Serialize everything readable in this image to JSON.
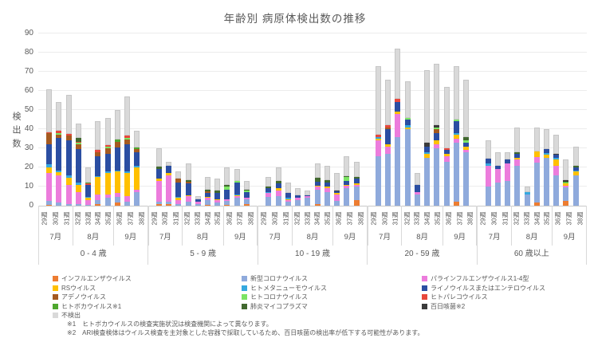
{
  "chart_data": {
    "type": "bar",
    "variant": "stacked",
    "title": "年齢別 病原体検出数の推移",
    "ylabel": "検出数",
    "ylim": [
      0,
      90
    ],
    "ytick_step": 10,
    "grid": true,
    "legend_position": "bottom",
    "weeks": [
      "29週",
      "30週",
      "31週",
      "32週",
      "33週",
      "34週",
      "35週",
      "36週",
      "37週",
      "38週"
    ],
    "months": [
      {
        "label": "7月",
        "weeks": 3
      },
      {
        "label": "8月",
        "weeks": 4
      },
      {
        "label": "9月",
        "weeks": 3
      }
    ],
    "series": [
      {
        "name": "インフルエンザウイルス",
        "color": "#ED7D31"
      },
      {
        "name": "新型コロナウイルス",
        "color": "#8FAADC"
      },
      {
        "name": "パラインフルエンザウイルス1-4型",
        "color": "#EC7CDC"
      },
      {
        "name": "RSウイルス",
        "color": "#FFC000"
      },
      {
        "name": "ヒトメタニューモウイルス",
        "color": "#35A8DF"
      },
      {
        "name": "ライノウイルスまたはエンテロウイルス",
        "color": "#2B4EA2"
      },
      {
        "name": "アデノウイルス",
        "color": "#A55A20"
      },
      {
        "name": "ヒトコロナウイルス",
        "color": "#7CE464"
      },
      {
        "name": "ヒトパレコウイルス",
        "color": "#E8483C"
      },
      {
        "name": "ヒトボカウイルス※1",
        "color": "#4EA72E"
      },
      {
        "name": "肺炎マイコプラズマ",
        "color": "#41692F"
      },
      {
        "name": "百日咳菌※2",
        "color": "#3B3B3B"
      },
      {
        "name": "不検出",
        "color": "#D9D9D9"
      }
    ],
    "groups": [
      {
        "label": "0 - 4 歳",
        "bars": [
          [
            0.5,
            2,
            14.5,
            3,
            1.5,
            10.5,
            6,
            0,
            0.5,
            0,
            0,
            0,
            22.5
          ],
          [
            0,
            1.5,
            14.5,
            1.5,
            1,
            17,
            1.5,
            1,
            1,
            0,
            0,
            0,
            15
          ],
          [
            0,
            1,
            10,
            3.5,
            1.5,
            18,
            2.5,
            0,
            1,
            0,
            0,
            0,
            20.5
          ],
          [
            0,
            1,
            6,
            4,
            1,
            17.5,
            2.5,
            1,
            0.5,
            0,
            2,
            0,
            7.5
          ],
          [
            0,
            0.5,
            2.5,
            1,
            0.5,
            6.5,
            0,
            0,
            0.5,
            0.5,
            0,
            0,
            8
          ],
          [
            1,
            2,
            3,
            9,
            0.5,
            10.5,
            2,
            0,
            1,
            0,
            0,
            0,
            15
          ],
          [
            0,
            4,
            2,
            11,
            1,
            9,
            3,
            1,
            0.5,
            0,
            0,
            0,
            14.5
          ],
          [
            1.5,
            3,
            2,
            11.5,
            0.5,
            12,
            3,
            0,
            0,
            1,
            0,
            0,
            15.5
          ],
          [
            0,
            2,
            3,
            12,
            1,
            14,
            2.5,
            1,
            1,
            0,
            0,
            0,
            20.5
          ],
          [
            0,
            7,
            1.5,
            11.5,
            1,
            7,
            1.5,
            0,
            0,
            1,
            0,
            0,
            8.5
          ]
        ]
      },
      {
        "label": "5 - 9 歳",
        "bars": [
          [
            1,
            1,
            11,
            1,
            0,
            5,
            0,
            0,
            0,
            0,
            1.5,
            0,
            9.5
          ],
          [
            1,
            1,
            14,
            1,
            0,
            4,
            0,
            0,
            0,
            0,
            0,
            0,
            2
          ],
          [
            0,
            1,
            2,
            1,
            0.5,
            7.5,
            2,
            0,
            0,
            0,
            0,
            0,
            4
          ],
          [
            0,
            2,
            3,
            0.5,
            0,
            6,
            1,
            0,
            0,
            0,
            1,
            0,
            8.5
          ],
          [
            0,
            1,
            1,
            0,
            0,
            1.5,
            0,
            0,
            0,
            0,
            0,
            0,
            1.5
          ],
          [
            0.5,
            2.5,
            1,
            0.5,
            0,
            2,
            1,
            0,
            0,
            0,
            1,
            0,
            6.5
          ],
          [
            0,
            1.5,
            1.5,
            0.5,
            0,
            3,
            0,
            0,
            0,
            0,
            1.5,
            0,
            6
          ],
          [
            0.5,
            2,
            1,
            0,
            0,
            5,
            0,
            1.5,
            0,
            0,
            1,
            0,
            9
          ],
          [
            0,
            4,
            1,
            0.5,
            0.5,
            6,
            0,
            1,
            0,
            0,
            0,
            0,
            6
          ],
          [
            1,
            2.5,
            0.5,
            0,
            0,
            3,
            0,
            1,
            0,
            0,
            0.5,
            0,
            4.5
          ]
        ]
      },
      {
        "label": "10 - 19 歳",
        "bars": [
          [
            0,
            4.5,
            2,
            0,
            0.5,
            2,
            0,
            0,
            0,
            0,
            1,
            0,
            5
          ],
          [
            0,
            5,
            3,
            1,
            0,
            2.5,
            0,
            0,
            0,
            0,
            1.5,
            0,
            7
          ],
          [
            0,
            2,
            1,
            0.5,
            0.5,
            2.5,
            0,
            0,
            0,
            0,
            0,
            0,
            5.5
          ],
          [
            0,
            3,
            1,
            0,
            0,
            1.5,
            0,
            0,
            0,
            0,
            0,
            0,
            3.5
          ],
          [
            0,
            4,
            1,
            0,
            0,
            0.5,
            0,
            0,
            0,
            0,
            0,
            0,
            2.5
          ],
          [
            1,
            7.5,
            1.5,
            0.5,
            0,
            2,
            0,
            0,
            0,
            0,
            2,
            0,
            7.5
          ],
          [
            0,
            7,
            2,
            1,
            0,
            2,
            0,
            0,
            0,
            0,
            1.5,
            0,
            7.5
          ],
          [
            0,
            2.5,
            3.5,
            0.5,
            0,
            1,
            0,
            0,
            0,
            0,
            0,
            0.5,
            9
          ],
          [
            0,
            9,
            1.5,
            0.5,
            0,
            2,
            0,
            2,
            0,
            0,
            0.5,
            0,
            10.5
          ],
          [
            3,
            7,
            1,
            0.5,
            0,
            2.5,
            0,
            0,
            0,
            0,
            1,
            0,
            8
          ]
        ]
      },
      {
        "label": "20 - 59 歳",
        "bars": [
          [
            0,
            26,
            8,
            1,
            1,
            0,
            0,
            0,
            1,
            0,
            0,
            0,
            36
          ],
          [
            0,
            27,
            4,
            1,
            0,
            8,
            1,
            0,
            1,
            0,
            0,
            0,
            24
          ],
          [
            0,
            36,
            12,
            1,
            0,
            5,
            0,
            0,
            2,
            0,
            0,
            0,
            26
          ],
          [
            0,
            40,
            0,
            1,
            1,
            3,
            0,
            1,
            0,
            0,
            0,
            0,
            19
          ],
          [
            0,
            6,
            1,
            0,
            0,
            4,
            0,
            0,
            0,
            0,
            0,
            0,
            6
          ],
          [
            0,
            25,
            0,
            2,
            1,
            3,
            0,
            0,
            0,
            0,
            0,
            2,
            38
          ],
          [
            0,
            30,
            2,
            2,
            0,
            4,
            2,
            1,
            0,
            0,
            0,
            1,
            32
          ],
          [
            0,
            23,
            3,
            1,
            0,
            2,
            0,
            0,
            1,
            0,
            0,
            0,
            32
          ],
          [
            2,
            31,
            2,
            2,
            1,
            6,
            0,
            1,
            0,
            0,
            0,
            0,
            28
          ],
          [
            0,
            28,
            1,
            2,
            0,
            2,
            0,
            1,
            0,
            0,
            2,
            0,
            30
          ]
        ]
      },
      {
        "label": "60 歳以上",
        "bars": [
          [
            0,
            10,
            11,
            0,
            1,
            2.5,
            0,
            0,
            0,
            0,
            0,
            0,
            9.5
          ],
          [
            0,
            12,
            7,
            0,
            0,
            2,
            0,
            0,
            0,
            0,
            0,
            0,
            7
          ],
          [
            0,
            13,
            9,
            0,
            0,
            2,
            0,
            0,
            0,
            0,
            0,
            0,
            4
          ],
          [
            0,
            21,
            3,
            1,
            0,
            2,
            0,
            0,
            0,
            0,
            1,
            0,
            13
          ],
          [
            0,
            6,
            0,
            0,
            1,
            0,
            0,
            0,
            0,
            0,
            0,
            0,
            3
          ],
          [
            1.5,
            21,
            3,
            3,
            0,
            0,
            0,
            0,
            0,
            0,
            0,
            0,
            12.5
          ],
          [
            0,
            25,
            0,
            1.5,
            1,
            2,
            0,
            0,
            0,
            0,
            0,
            0,
            10.5
          ],
          [
            0,
            16,
            5,
            3,
            1,
            1.5,
            0,
            0,
            0,
            0,
            0,
            0.5,
            10
          ],
          [
            2.5,
            7,
            1,
            1,
            0,
            0,
            0,
            0.5,
            0,
            0.5,
            0,
            1,
            10.5
          ],
          [
            0,
            16,
            0,
            2,
            0.5,
            1.5,
            0,
            0,
            0,
            0,
            1,
            0,
            10
          ]
        ]
      }
    ],
    "notes": [
      "※1　ヒトボカウイルスの検査実施状況は検査機関によって異なります。",
      "※2　ARI検査検体はウイルス検査を主対象とした容器で採取しているため、百日咳菌の検出率が低下する可能性があります。"
    ]
  }
}
